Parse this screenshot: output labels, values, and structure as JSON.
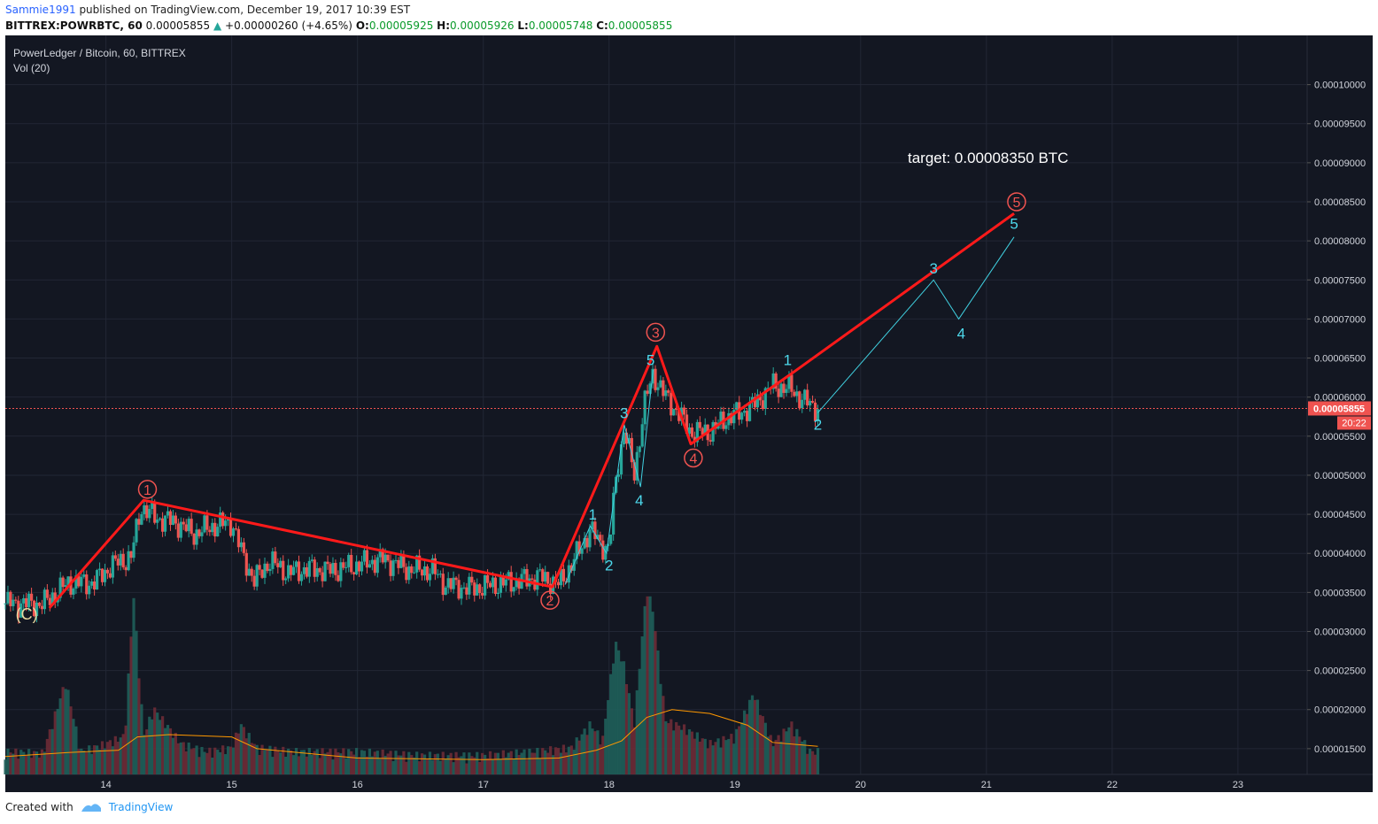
{
  "header": {
    "user": "Sammie1991",
    "published": "published on TradingView.com, December 19, 2017 10:39 EST",
    "symbol": "BITTREX:POWRBTC, 60",
    "last": "0.00005855",
    "change": "+0.00000260 (+4.65%)",
    "o_label": "O:",
    "o_value": "0.00005925",
    "h_label": "H:",
    "h_value": "0.00005926",
    "l_label": "L:",
    "l_value": "0.00005748",
    "c_label": "C:",
    "c_value": "0.00005855"
  },
  "pane": {
    "title": "PowerLedger / Bitcoin, 60, BITTREX",
    "indicator": "Vol (20)",
    "target_text": "target:  0.00008350 BTC",
    "last_price_tag": "0.00005855",
    "countdown_tag": "20:22"
  },
  "footer": {
    "created_with": "Created with",
    "brand": "TradingView"
  },
  "colors": {
    "background": "#131722",
    "up": "#26a69a",
    "down": "#ef5350",
    "wave": "#ff0000",
    "subwave": "#40d0e0",
    "label_circle": "#ef5350",
    "vol_ma": "#ff9800",
    "price_line": "#ef5350"
  },
  "chart_data": {
    "type": "line",
    "title": "PowerLedger / Bitcoin, 60, BITTREX",
    "xlabel": "",
    "ylabel": "",
    "x_ticks": [
      "14",
      "15",
      "16",
      "17",
      "18",
      "19",
      "20",
      "21",
      "22",
      "23"
    ],
    "y_ticks": [
      "0.00001500",
      "0.00002000",
      "0.00002500",
      "0.00003000",
      "0.00003500",
      "0.00004000",
      "0.00004500",
      "0.00005000",
      "0.00005500",
      "0.00006000",
      "0.00006500",
      "0.00007000",
      "0.00007500",
      "0.00008000",
      "0.00008500",
      "0.00009000",
      "0.00009500",
      "0.00010000"
    ],
    "xlim": [
      13.2,
      23.55
    ],
    "ylim": [
      1.17e-05,
      0.0001063
    ],
    "current_price": 5.855e-05,
    "price_series_close": [
      [
        13.2,
        3.36e-05
      ],
      [
        13.5,
        3.35e-05
      ],
      [
        13.7,
        3.62e-05
      ],
      [
        13.9,
        3.62e-05
      ],
      [
        14.05,
        3.85e-05
      ],
      [
        14.2,
        3.95e-05
      ],
      [
        14.28,
        4.6e-05
      ],
      [
        14.4,
        4.45e-05
      ],
      [
        14.55,
        4.4e-05
      ],
      [
        14.7,
        4.25e-05
      ],
      [
        14.85,
        4.35e-05
      ],
      [
        15.0,
        4.4e-05
      ],
      [
        15.08,
        4e-05
      ],
      [
        15.18,
        3.65e-05
      ],
      [
        15.3,
        3.9e-05
      ],
      [
        15.45,
        3.75e-05
      ],
      [
        15.6,
        3.8e-05
      ],
      [
        15.8,
        3.78e-05
      ],
      [
        16.0,
        3.85e-05
      ],
      [
        16.2,
        3.93e-05
      ],
      [
        16.4,
        3.8e-05
      ],
      [
        16.6,
        3.78e-05
      ],
      [
        16.7,
        3.6e-05
      ],
      [
        16.9,
        3.55e-05
      ],
      [
        17.1,
        3.6e-05
      ],
      [
        17.3,
        3.65e-05
      ],
      [
        17.45,
        3.7e-05
      ],
      [
        17.6,
        3.6e-05
      ],
      [
        17.7,
        3.85e-05
      ],
      [
        17.85,
        4.3e-05
      ],
      [
        17.95,
        4.1e-05
      ],
      [
        18.0,
        4.05e-05
      ],
      [
        18.05,
        4.9e-05
      ],
      [
        18.12,
        5.6e-05
      ],
      [
        18.2,
        5e-05
      ],
      [
        18.28,
        5.9e-05
      ],
      [
        18.35,
        6.3e-05
      ],
      [
        18.45,
        6e-05
      ],
      [
        18.55,
        5.8e-05
      ],
      [
        18.65,
        5.55e-05
      ],
      [
        18.8,
        5.55e-05
      ],
      [
        18.95,
        5.75e-05
      ],
      [
        19.05,
        5.8e-05
      ],
      [
        19.15,
        5.9e-05
      ],
      [
        19.3,
        6.15e-05
      ],
      [
        19.45,
        6.1e-05
      ],
      [
        19.55,
        5.95e-05
      ],
      [
        19.66,
        5.85e-05
      ]
    ],
    "volume_heights": [
      [
        13.2,
        1.4e-05
      ],
      [
        13.5,
        1.38e-05
      ],
      [
        13.68,
        2.3e-05
      ],
      [
        13.8,
        1.4e-05
      ],
      [
        14.0,
        1.5e-05
      ],
      [
        14.15,
        1.6e-05
      ],
      [
        14.22,
        3.4e-05
      ],
      [
        14.3,
        1.6e-05
      ],
      [
        14.38,
        1.95e-05
      ],
      [
        14.6,
        1.5e-05
      ],
      [
        14.8,
        1.4e-05
      ],
      [
        15.0,
        1.45e-05
      ],
      [
        15.07,
        1.75e-05
      ],
      [
        15.2,
        1.45e-05
      ],
      [
        15.5,
        1.4e-05
      ],
      [
        16.0,
        1.4e-05
      ],
      [
        16.5,
        1.35e-05
      ],
      [
        17.0,
        1.35e-05
      ],
      [
        17.4,
        1.4e-05
      ],
      [
        17.7,
        1.45e-05
      ],
      [
        17.85,
        1.75e-05
      ],
      [
        17.95,
        1.55e-05
      ],
      [
        18.05,
        2.8e-05
      ],
      [
        18.12,
        2.5e-05
      ],
      [
        18.2,
        1.75e-05
      ],
      [
        18.3,
        3.5e-05
      ],
      [
        18.35,
        3.2e-05
      ],
      [
        18.45,
        1.8e-05
      ],
      [
        18.6,
        1.7e-05
      ],
      [
        18.8,
        1.5e-05
      ],
      [
        19.0,
        1.6e-05
      ],
      [
        19.15,
        2.15e-05
      ],
      [
        19.3,
        1.5e-05
      ],
      [
        19.45,
        1.75e-05
      ],
      [
        19.6,
        1.4e-05
      ]
    ],
    "volume_ma": [
      [
        13.2,
        1.4e-05
      ],
      [
        13.7,
        1.45e-05
      ],
      [
        14.1,
        1.48e-05
      ],
      [
        14.25,
        1.65e-05
      ],
      [
        14.5,
        1.68e-05
      ],
      [
        15.0,
        1.65e-05
      ],
      [
        15.2,
        1.5e-05
      ],
      [
        16.0,
        1.38e-05
      ],
      [
        17.0,
        1.36e-05
      ],
      [
        17.6,
        1.38e-05
      ],
      [
        17.9,
        1.48e-05
      ],
      [
        18.1,
        1.6e-05
      ],
      [
        18.3,
        1.9e-05
      ],
      [
        18.5,
        2e-05
      ],
      [
        18.8,
        1.95e-05
      ],
      [
        19.1,
        1.8e-05
      ],
      [
        19.3,
        1.58e-05
      ],
      [
        19.66,
        1.53e-05
      ]
    ],
    "wave_main": [
      [
        13.55,
        3.3e-05
      ],
      [
        14.3,
        4.68e-05
      ],
      [
        17.55,
        3.57e-05
      ],
      [
        18.38,
        6.65e-05
      ],
      [
        18.65,
        5.4e-05
      ],
      [
        19.45,
        6.3e-05
      ],
      [
        21.22,
        8.35e-05
      ]
    ],
    "wave_sub_cyan": [
      [
        19.66,
        5.8e-05
      ],
      [
        20.58,
        7.5e-05
      ],
      [
        20.78,
        7e-05
      ],
      [
        21.22,
        8.05e-05
      ]
    ],
    "wave_sub_detail": [
      [
        17.65,
        3.6e-05
      ],
      [
        17.85,
        4.35e-05
      ],
      [
        17.98,
        4e-05
      ],
      [
        18.12,
        5.65e-05
      ],
      [
        18.25,
        4.85e-05
      ],
      [
        18.35,
        6.35e-05
      ]
    ],
    "labels_circled": [
      {
        "text": "1",
        "x": 14.33,
        "y": 4.82e-05
      },
      {
        "text": "2",
        "x": 17.53,
        "y": 3.4e-05
      },
      {
        "text": "3",
        "x": 18.37,
        "y": 6.83e-05
      },
      {
        "text": "4",
        "x": 18.67,
        "y": 5.22e-05
      },
      {
        "text": "5",
        "x": 21.24,
        "y": 8.5e-05
      }
    ],
    "labels_plain": [
      {
        "text": "1",
        "x": 17.87,
        "y": 4.5e-05
      },
      {
        "text": "2",
        "x": 18.0,
        "y": 3.85e-05
      },
      {
        "text": "3",
        "x": 18.12,
        "y": 5.8e-05
      },
      {
        "text": "4",
        "x": 18.24,
        "y": 4.68e-05
      },
      {
        "text": "5",
        "x": 18.33,
        "y": 6.48e-05
      },
      {
        "text": "1",
        "x": 19.42,
        "y": 6.48e-05
      },
      {
        "text": "2",
        "x": 19.66,
        "y": 5.65e-05
      },
      {
        "text": "3",
        "x": 20.58,
        "y": 7.65e-05
      },
      {
        "text": "4",
        "x": 20.8,
        "y": 6.82e-05
      },
      {
        "text": "5",
        "x": 21.22,
        "y": 8.22e-05
      }
    ],
    "label_c": {
      "text": "(C)",
      "x": 13.37,
      "y": 3.22e-05
    }
  }
}
